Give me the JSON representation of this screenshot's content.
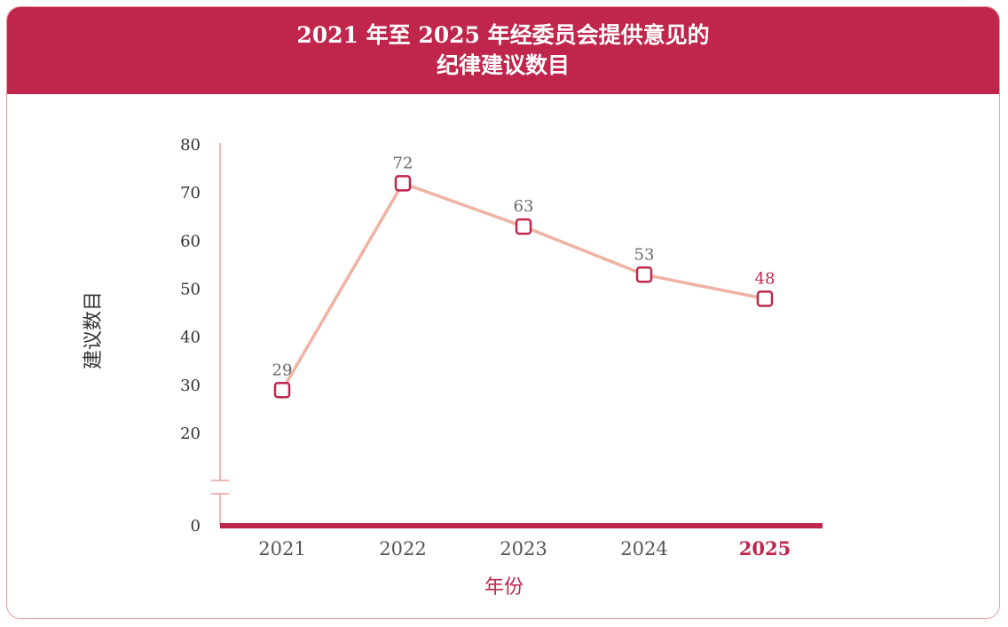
{
  "header": {
    "title_line1": "2021 年至 2025 年经委员会提供意见的",
    "title_line2": "纪律建议数目"
  },
  "colors": {
    "accent": "#c0264b",
    "line": "#f0b2a2",
    "border": "#e8a0a0"
  },
  "chart_data": {
    "type": "line",
    "categories": [
      "2021",
      "2022",
      "2023",
      "2024",
      "2025"
    ],
    "values": [
      29,
      72,
      63,
      53,
      48
    ],
    "highlight_category": "2025",
    "xlabel": "年份",
    "ylabel": "建议数目",
    "yticks": [
      0,
      20,
      30,
      40,
      50,
      60,
      70,
      80
    ],
    "ylim": [
      0,
      80
    ],
    "axis_break": true,
    "grid": false,
    "legend": "none",
    "marker": "square"
  }
}
